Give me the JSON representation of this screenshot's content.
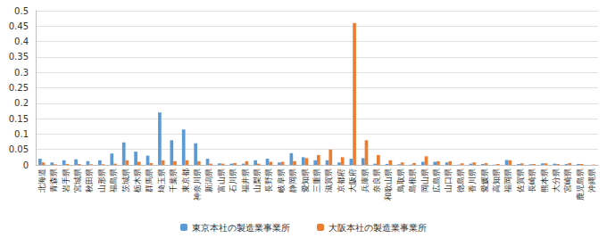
{
  "chart_data": {
    "type": "bar",
    "categories": [
      "北海道",
      "青森県",
      "岩手県",
      "宮城県",
      "秋田県",
      "山形県",
      "福島県",
      "茨城県",
      "栃木県",
      "群馬県",
      "埼玉県",
      "千葉県",
      "東京都",
      "神奈川県",
      "新潟県",
      "富山県",
      "石川県",
      "福井県",
      "山梨県",
      "長野県",
      "岐阜県",
      "静岡県",
      "愛知県",
      "三重県",
      "滋賀県",
      "京都府",
      "大阪府",
      "兵庫県",
      "奈良県",
      "和歌山県",
      "鳥取県",
      "島根県",
      "岡山県",
      "広島県",
      "山口県",
      "徳島県",
      "香川県",
      "愛媛県",
      "高知県",
      "福岡県",
      "佐賀県",
      "長崎県",
      "熊本県",
      "大分県",
      "宮崎県",
      "鹿児島県",
      "沖縄県"
    ],
    "series": [
      {
        "name": "東京本社の製造業事業所",
        "color": "#5b9bd5",
        "values": [
          0.02,
          0.008,
          0.015,
          0.018,
          0.012,
          0.015,
          0.037,
          0.073,
          0.043,
          0.03,
          0.17,
          0.08,
          0.115,
          0.07,
          0.02,
          0.005,
          0.004,
          0.004,
          0.015,
          0.02,
          0.008,
          0.038,
          0.025,
          0.015,
          0.015,
          0.008,
          0.02,
          0.022,
          0.004,
          0.003,
          0.002,
          0.001,
          0.01,
          0.01,
          0.008,
          0.001,
          0.004,
          0.003,
          0.001,
          0.016,
          0.003,
          0.002,
          0.005,
          0.004,
          0.003,
          0.003,
          0
        ]
      },
      {
        "name": "大阪本社の製造業事業所",
        "color": "#ed7d31",
        "values": [
          0.008,
          0.002,
          0.003,
          0.003,
          0.002,
          0.002,
          0.004,
          0.015,
          0.01,
          0.006,
          0.015,
          0.012,
          0.015,
          0.012,
          0.004,
          0.004,
          0.006,
          0.012,
          0.004,
          0.01,
          0.01,
          0.012,
          0.022,
          0.032,
          0.05,
          0.025,
          0.46,
          0.08,
          0.032,
          0.015,
          0.008,
          0.006,
          0.028,
          0.012,
          0.012,
          0.005,
          0.008,
          0.006,
          0.003,
          0.015,
          0.005,
          0.003,
          0.005,
          0.003,
          0.006,
          0.003,
          0.001
        ]
      }
    ],
    "ylim": [
      0,
      0.5
    ],
    "yticks": [
      0,
      0.05,
      0.1,
      0.15,
      0.2,
      0.25,
      0.3,
      0.35,
      0.4,
      0.45,
      0.5
    ],
    "grid": true,
    "legend": "bottom"
  }
}
